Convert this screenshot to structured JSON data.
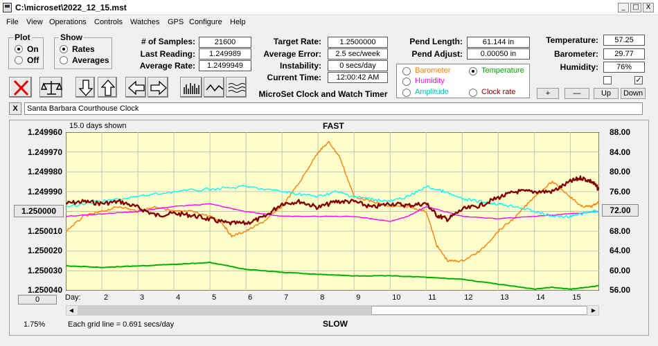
{
  "window": {
    "title": "C:\\microset\\2022_12_15.mst",
    "min": "_",
    "max": "□",
    "close": "X"
  },
  "menu": [
    "File",
    "View",
    "Operations",
    "Controls",
    "Watches",
    "GPS",
    "Configure",
    "Help"
  ],
  "plot": {
    "title": "Plot",
    "on": "On",
    "off": "Off",
    "selected": "On"
  },
  "show": {
    "title": "Show",
    "rates": "Rates",
    "averages": "Averages",
    "selected": "Rates"
  },
  "stats": {
    "samples_label": "# of Samples:",
    "samples": "21600",
    "last_label": "Last Reading:",
    "last": "1.249989",
    "avgrate_label": "Average Rate:",
    "avgrate": "1.2499949",
    "target_label": "Target Rate:",
    "target": "1.2500000",
    "avgerr_label": "Average Error:",
    "avgerr": "2.5 sec/week",
    "instab_label": "Instability:",
    "instab": "0 secs/day",
    "time_label": "Current Time:",
    "time": "12:00:42 AM",
    "app_name": "MicroSet Clock and Watch Timer",
    "pendlen_label": "Pend Length:",
    "pendlen": "61.144 in",
    "pendadj_label": "Pend Adjust:",
    "pendadj": "0.00050 in",
    "temp_label": "Temperature:",
    "temp": "57.25",
    "baro_label": "Barometer:",
    "baro": "29.77",
    "hum_label": "Humidity:",
    "hum": "76%"
  },
  "selector": {
    "barometer": "Barometer",
    "temperature": "Temperature",
    "humidity": "Humidity",
    "amplitude": "Amplitude",
    "clockrate": "Clock rate",
    "selected": "Temperature"
  },
  "buttons": {
    "plus": "+",
    "minus": "—",
    "up": "Up",
    "down": "Down",
    "close_x": "X",
    "zero": "0"
  },
  "checkboxes": {
    "c1": "",
    "c2": "✓"
  },
  "clock_name": "Santa Barbara Courthouse Clock",
  "chart_header": {
    "days_shown": "15.0 days shown",
    "fast": "FAST",
    "slow": "SLOW",
    "day": "Day:",
    "grid_note": "Each grid line = 0.691 secs/day",
    "pct": "1.75%"
  },
  "colors": {
    "plot_bg": "#ffffcc",
    "rate": "#800000",
    "temperature": "#ff8000",
    "humidity": "#ff00ff",
    "amplitude": "#00ffff",
    "barometer_line": "#00b000"
  },
  "chart_data": {
    "type": "line",
    "x_ticks": [
      "2",
      "3",
      "4",
      "5",
      "6",
      "7",
      "8",
      "9",
      "10",
      "11",
      "12",
      "13",
      "14",
      "15"
    ],
    "x_range": [
      1,
      15.8
    ],
    "y_left_ticks": [
      "1.249960",
      "1.249970",
      "1.249980",
      "1.249990",
      "1.250000",
      "1.250010",
      "1.250020",
      "1.250030",
      "1.250040"
    ],
    "y_left_range": [
      1.24996,
      1.25004
    ],
    "y_left_selected": "1.250000",
    "y_right_ticks": [
      "88.00",
      "84.00",
      "80.00",
      "76.00",
      "72.00",
      "68.00",
      "64.00",
      "60.00",
      "56.00"
    ],
    "y_right_range": [
      56,
      88
    ],
    "y_right_selected": "72.00",
    "series": [
      {
        "key": "rate",
        "x": [
          1,
          1.5,
          2,
          2.5,
          3,
          3.5,
          4,
          4.5,
          5,
          5.5,
          6,
          6.5,
          7,
          7.5,
          8,
          8.5,
          9,
          9.5,
          10,
          10.5,
          11,
          11.3,
          11.6,
          12,
          12.5,
          13,
          13.5,
          14,
          14.5,
          15,
          15.3,
          15.6,
          15.8
        ],
        "y": [
          1.249996,
          1.249995,
          1.249996,
          1.249995,
          1.249998,
          1.250002,
          1.250001,
          1.250002,
          1.250004,
          1.250006,
          1.250006,
          1.250003,
          1.249996,
          1.249995,
          1.249998,
          1.249995,
          1.249995,
          1.249998,
          1.249996,
          1.249997,
          1.249996,
          1.250002,
          1.250004,
          1.249999,
          1.249997,
          1.249993,
          1.24999,
          1.24999,
          1.24999,
          1.249985,
          1.249983,
          1.249985,
          1.249989
        ]
      },
      {
        "key": "temperature",
        "x": [
          1,
          1.5,
          2,
          2.5,
          3,
          3.5,
          4,
          4.5,
          5,
          5.3,
          5.6,
          6,
          6.5,
          7,
          7.5,
          8,
          8.3,
          8.6,
          9,
          9.5,
          10,
          10.5,
          11,
          11.3,
          11.6,
          12,
          12.5,
          13,
          13.5,
          14,
          14.5,
          15,
          15.3,
          15.6,
          15.8
        ],
        "y": [
          68,
          71,
          72,
          73,
          72,
          73,
          72,
          72,
          71,
          70,
          67,
          68,
          70,
          73,
          78,
          84,
          86,
          83,
          75,
          74,
          73,
          73,
          72,
          65,
          62,
          62,
          64,
          68,
          71,
          75,
          78,
          75,
          73,
          73,
          74
        ]
      },
      {
        "key": "humidity",
        "x": [
          1,
          2,
          3,
          4,
          5,
          6,
          7,
          8,
          9,
          10,
          10.5,
          11,
          12,
          13,
          14,
          15,
          15.8
        ],
        "y": [
          71,
          71.5,
          72,
          73,
          73.5,
          72,
          71,
          71,
          71,
          70,
          71,
          73,
          71,
          70.5,
          71,
          71.5,
          72
        ]
      },
      {
        "key": "amplitude",
        "x": [
          1,
          2,
          3,
          4,
          5,
          6,
          7,
          7.5,
          8,
          8.5,
          9,
          9.5,
          10,
          10.5,
          11,
          11.5,
          12,
          12.5,
          13,
          13.5,
          14,
          14.5,
          15,
          15.3,
          15.6,
          15.8
        ],
        "y": [
          73,
          74,
          75,
          76,
          76.5,
          77,
          76,
          75.5,
          75,
          76,
          75,
          74.5,
          74,
          75,
          77,
          76,
          74.5,
          74,
          73.5,
          73,
          72,
          71,
          71,
          71.5,
          72,
          72
        ]
      },
      {
        "key": "barometer_line",
        "x": [
          1,
          2,
          3,
          4,
          5,
          6,
          7,
          8,
          9,
          10,
          11,
          12,
          13,
          14,
          14.5,
          15,
          15.5,
          15.8
        ],
        "y": [
          61,
          60.7,
          61,
          61.3,
          61.7,
          60.3,
          59.7,
          59.3,
          59,
          59,
          58.7,
          58.3,
          57.3,
          56.3,
          56.7,
          56.3,
          56.7,
          57
        ]
      }
    ]
  }
}
